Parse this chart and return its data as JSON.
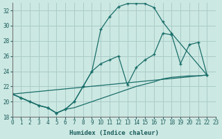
{
  "xlabel": "Humidex (Indice chaleur)",
  "bg_color": "#cce8e2",
  "grid_color": "#aaccc8",
  "line_color": "#1a6e6a",
  "xlim": [
    0,
    23
  ],
  "ylim": [
    18,
    33
  ],
  "yticks": [
    18,
    20,
    22,
    24,
    26,
    28,
    30,
    32
  ],
  "xticks": [
    0,
    1,
    2,
    3,
    4,
    5,
    6,
    7,
    8,
    9,
    10,
    11,
    12,
    13,
    14,
    15,
    16,
    17,
    18,
    19,
    20,
    21,
    22,
    23
  ],
  "curve1_x": [
    0,
    1,
    2,
    3,
    4,
    5,
    6,
    7,
    8,
    9,
    10,
    11,
    12,
    13,
    14,
    15,
    16,
    17,
    18,
    22
  ],
  "curve1_y": [
    21.0,
    20.5,
    20.0,
    19.5,
    19.2,
    18.5,
    19.0,
    20.0,
    22.0,
    24.0,
    29.5,
    31.2,
    32.5,
    32.9,
    32.9,
    32.9,
    32.4,
    30.5,
    29.0,
    23.5
  ],
  "curve2_x": [
    0,
    1,
    2,
    3,
    4,
    5,
    6,
    7,
    8,
    9,
    10,
    11,
    12,
    13,
    14,
    15,
    16,
    17,
    18,
    19,
    20,
    21,
    22
  ],
  "curve2_y": [
    21.0,
    20.5,
    20.0,
    19.5,
    19.2,
    18.5,
    19.0,
    20.0,
    22.0,
    24.0,
    25.0,
    25.5,
    26.0,
    22.2,
    24.5,
    25.5,
    26.2,
    29.0,
    28.8,
    25.0,
    27.5,
    27.8,
    23.5
  ],
  "curve3_x": [
    0,
    22
  ],
  "curve3_y": [
    21.0,
    23.5
  ],
  "curve4_x": [
    0,
    1,
    2,
    3,
    4,
    5,
    6,
    7,
    8,
    9,
    10,
    11,
    12,
    13,
    14,
    15,
    16,
    17,
    18,
    19,
    20,
    21,
    22
  ],
  "curve4_y": [
    21.0,
    20.5,
    20.0,
    19.5,
    19.2,
    18.5,
    19.0,
    19.2,
    19.6,
    20.0,
    20.4,
    20.8,
    21.2,
    21.6,
    22.0,
    22.3,
    22.6,
    23.0,
    23.2,
    23.3,
    23.4,
    23.4,
    23.5
  ]
}
